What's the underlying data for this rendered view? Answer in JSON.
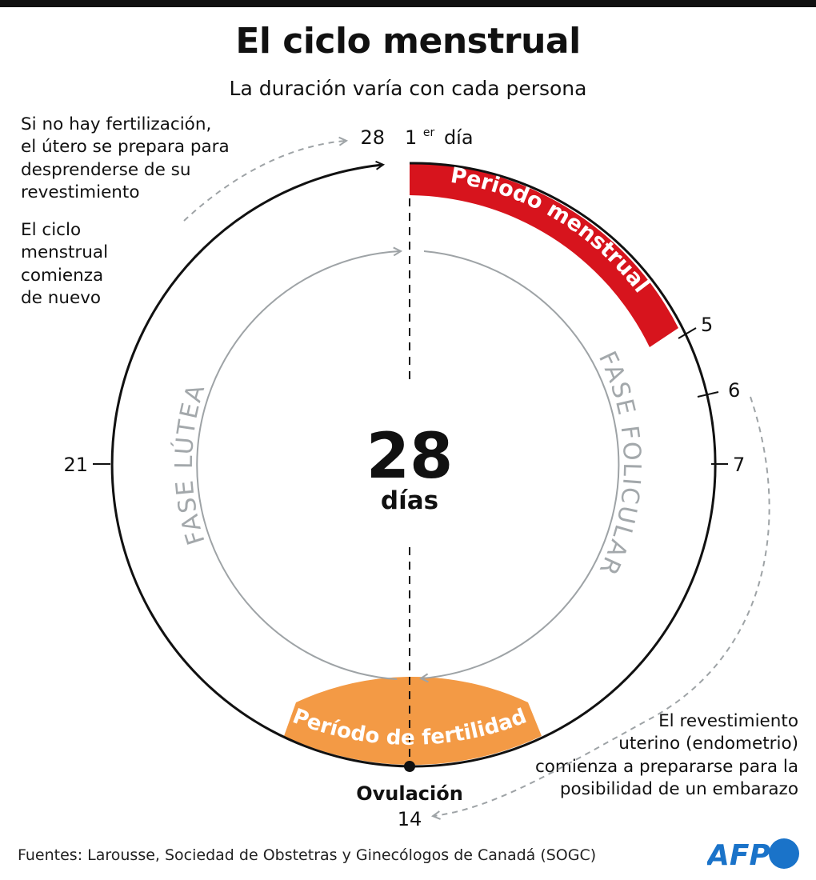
{
  "title": "El ciclo menstrual",
  "subtitle": "La duración varía con cada persona",
  "notes": {
    "top": [
      "Si no hay fertilización,",
      "el útero se prepara para",
      "desprenderse de su",
      "revestimiento"
    ],
    "restart": [
      "El ciclo",
      "menstrual",
      "comienza",
      "de nuevo"
    ],
    "right": [
      "El revestimiento",
      "uterino (endometrio)",
      "comienza a prepararse para la",
      "posibilidad de un embarazo"
    ]
  },
  "cycle": {
    "total_number": "28",
    "total_unit": "días",
    "day_labels": {
      "d28": "28",
      "first_day_number": "1",
      "first_day_superscript": "er",
      "first_day_word": "día",
      "d5": "5",
      "d6": "6",
      "d7": "7",
      "d14": "14",
      "d21": "21"
    },
    "menstrual_band_label": "Periodo menstrual",
    "fertility_band_label": "Período de fertilidad",
    "ovulation_label": "Ovulación",
    "follicular_phase_label": "FASE FOLICULAR",
    "luteal_phase_label": "FASE LÚTEA"
  },
  "colors": {
    "menstrual": "#d7141d",
    "fertility": "#f39a45",
    "phase_text": "#a3a8ab",
    "logo_blue": "#1a73c9"
  },
  "source": "Fuentes: Larousse, Sociedad de Obstetras y Ginecólogos de Canadá (SOGC)",
  "logo_text": "AFP"
}
